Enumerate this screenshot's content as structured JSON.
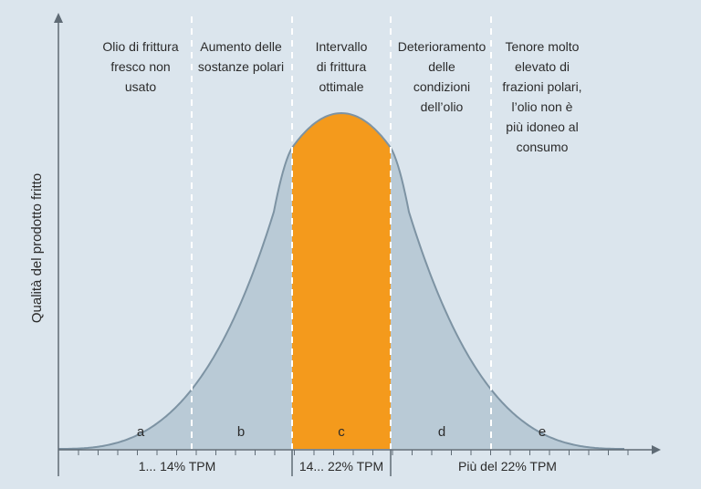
{
  "y_axis_label": "Qualità del prodotto fritto",
  "zones": [
    {
      "letter": "a",
      "description": "Olio di frittura\nfresco non\nusato"
    },
    {
      "letter": "b",
      "description": "Aumento delle\nsostanze polari"
    },
    {
      "letter": "c",
      "description": "Intervallo\ndi frittura\nottimale"
    },
    {
      "letter": "d",
      "description": "Deterioramento\ndelle\ncondizioni\ndell’olio"
    },
    {
      "letter": "e",
      "description": "Tenore molto\nelevato di\nfrazioni polari,\nl’olio non è\npiù idoneo al\nconsumo"
    }
  ],
  "ranges": [
    {
      "label": "1... 14% TPM"
    },
    {
      "label": "14... 22% TPM"
    },
    {
      "label": "Più del 22% TPM"
    }
  ],
  "colors": {
    "background": "#dbe5ed",
    "curve_fill": "#b9cad6",
    "curve_stroke": "#7d93a3",
    "optimal_fill": "#f49a1c",
    "divider": "#ffffff",
    "axis": "#5f6b75"
  }
}
